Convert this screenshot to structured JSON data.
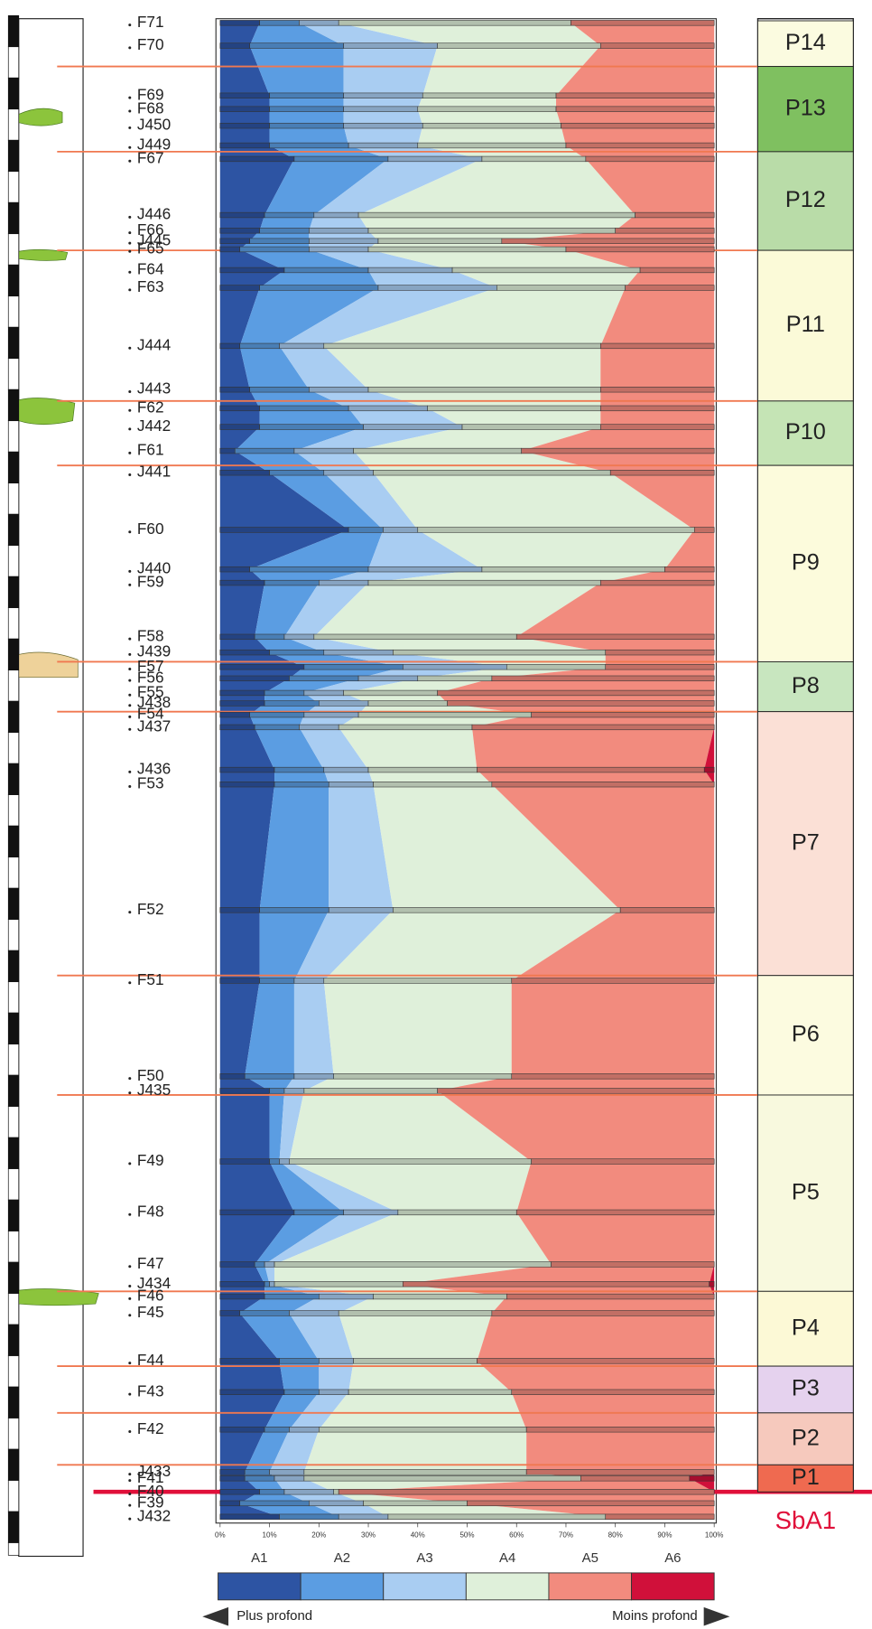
{
  "chart_data": {
    "type": "stacked_profile",
    "samples": [
      "F71",
      "F70",
      "F69",
      "F68",
      "J450",
      "J449",
      "F67",
      "J446",
      "F66",
      "J445",
      "F65",
      "F64",
      "F63",
      "J444",
      "J443",
      "F62",
      "J442",
      "F61",
      "J441",
      "F60",
      "J440",
      "F59",
      "F58",
      "J439",
      "F57",
      "F56",
      "F55",
      "J438",
      "F54",
      "J437",
      "J436",
      "F53",
      "F52",
      "F51",
      "F50",
      "J435",
      "F49",
      "F48",
      "F47",
      "J434",
      "F46",
      "F45",
      "F44",
      "F43",
      "F42",
      "J433",
      "F41",
      "F40",
      "F39",
      "J432"
    ],
    "series": [
      {
        "name": "A1",
        "color": "#2d54a3",
        "values": [
          8,
          6,
          10,
          10,
          10,
          10,
          15,
          9,
          8,
          6,
          4,
          13,
          8,
          4,
          6,
          8,
          8,
          3,
          10,
          26,
          6,
          9,
          7,
          10,
          17,
          14,
          9,
          9,
          6,
          7,
          11,
          11,
          8,
          8,
          5,
          10,
          10,
          15,
          7,
          9,
          9,
          4,
          12,
          13,
          9,
          5,
          5,
          8,
          4,
          12
        ]
      },
      {
        "name": "A2",
        "color": "#5b9de2",
        "values": [
          8,
          19,
          15,
          15,
          15,
          16,
          19,
          10,
          10,
          12,
          14,
          17,
          24,
          8,
          12,
          18,
          21,
          12,
          11,
          7,
          24,
          11,
          6,
          11,
          20,
          14,
          8,
          11,
          11,
          9,
          10,
          11,
          14,
          7,
          10,
          3,
          2,
          10,
          2,
          1,
          11,
          10,
          8,
          7,
          5,
          5,
          6,
          5,
          14,
          12
        ]
      },
      {
        "name": "A3",
        "color": "#a9cdf2",
        "values": [
          8,
          19,
          16,
          15,
          16,
          14,
          19,
          9,
          12,
          14,
          12,
          17,
          24,
          9,
          12,
          16,
          20,
          12,
          10,
          7,
          23,
          10,
          6,
          14,
          21,
          12,
          8,
          10,
          11,
          8,
          9,
          9,
          13,
          6,
          8,
          4,
          2,
          11,
          2,
          1,
          11,
          10,
          7,
          6,
          6,
          7,
          6,
          10,
          11,
          10
        ]
      },
      {
        "name": "A4",
        "color": "#dff0da",
        "values": [
          47,
          33,
          27,
          28,
          28,
          30,
          21,
          56,
          50,
          25,
          40,
          38,
          26,
          56,
          47,
          35,
          28,
          34,
          48,
          56,
          37,
          47,
          41,
          43,
          20,
          15,
          19,
          16,
          35,
          27,
          22,
          24,
          46,
          38,
          36,
          27,
          49,
          24,
          56,
          26,
          27,
          31,
          25,
          33,
          42,
          45,
          56,
          1,
          21,
          44
        ]
      },
      {
        "name": "A5",
        "color": "#f28b7e",
        "values": [
          29,
          23,
          32,
          32,
          31,
          30,
          26,
          16,
          20,
          43,
          30,
          15,
          18,
          23,
          23,
          23,
          23,
          39,
          21,
          4,
          10,
          23,
          40,
          22,
          22,
          45,
          56,
          54,
          37,
          49,
          46,
          45,
          19,
          41,
          41,
          56,
          37,
          40,
          33,
          62,
          42,
          45,
          48,
          41,
          38,
          38,
          22,
          76,
          50,
          22
        ]
      },
      {
        "name": "A6",
        "color": "#d0103a",
        "values": [
          0,
          0,
          0,
          0,
          0,
          0,
          0,
          0,
          0,
          0,
          0,
          0,
          0,
          0,
          0,
          0,
          0,
          0,
          0,
          0,
          0,
          0,
          0,
          0,
          0,
          0,
          0,
          0,
          0,
          0,
          2,
          0,
          0,
          0,
          0,
          0,
          0,
          0,
          0,
          1,
          0,
          0,
          0,
          0,
          0,
          0,
          5,
          0,
          0,
          0
        ]
      }
    ],
    "xlim": [
      0,
      100
    ],
    "xticks": [
      {
        "value": 0,
        "label": "0%"
      },
      {
        "value": 10,
        "label": "10%"
      },
      {
        "value": 20,
        "label": "20%"
      },
      {
        "value": 30,
        "label": "30%"
      },
      {
        "value": 40,
        "label": "40%"
      },
      {
        "value": 50,
        "label": "50%"
      },
      {
        "value": 60,
        "label": "60%"
      },
      {
        "value": 70,
        "label": "70%"
      },
      {
        "value": 80,
        "label": "80%"
      },
      {
        "value": 90,
        "label": "90%"
      },
      {
        "value": 100,
        "label": "100%"
      }
    ],
    "periods": [
      {
        "name": "P14",
        "color": "#fbfbe0"
      },
      {
        "name": "P13",
        "color": "#7fc060"
      },
      {
        "name": "P12",
        "color": "#b9dca8"
      },
      {
        "name": "P11",
        "color": "#fbfad8"
      },
      {
        "name": "P10",
        "color": "#c5e4b5"
      },
      {
        "name": "P9",
        "color": "#fcfbdc"
      },
      {
        "name": "P8",
        "color": "#c8e6bf"
      },
      {
        "name": "P7",
        "color": "#fbe0d6"
      },
      {
        "name": "P6",
        "color": "#fcfbe0"
      },
      {
        "name": "P5",
        "color": "#f8f9de"
      },
      {
        "name": "P4",
        "color": "#fcf9d6"
      },
      {
        "name": "P3",
        "color": "#e5d2ee"
      },
      {
        "name": "P2",
        "color": "#f6c9bd"
      },
      {
        "name": "P1",
        "color": "#ef6a50"
      }
    ],
    "boundary_label": "SbA1",
    "direction_labels": [
      "Plus profond",
      "Moins profond"
    ]
  }
}
